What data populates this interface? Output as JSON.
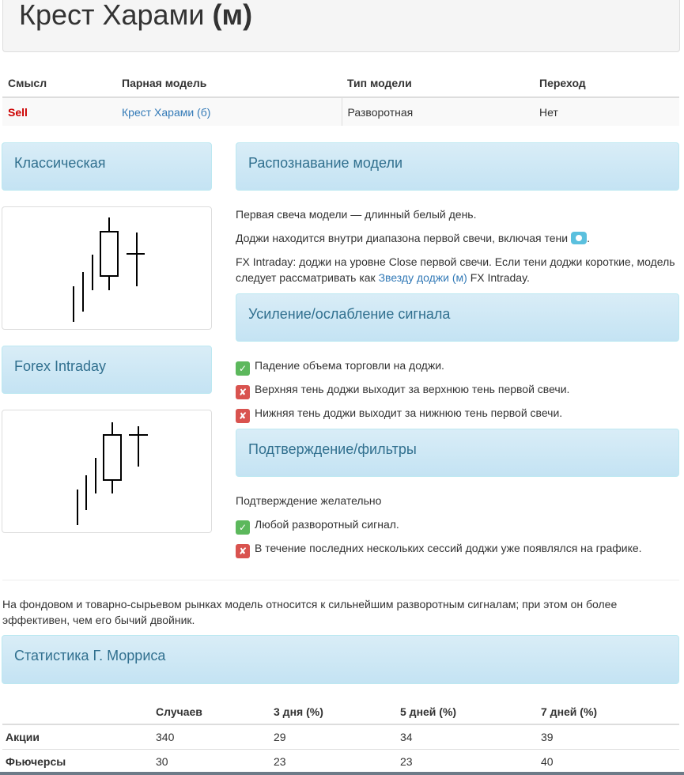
{
  "header": {
    "title": "Крест Харами",
    "suffix": "(м)"
  },
  "info_table": {
    "headers": [
      "Смысл",
      "Парная модель",
      "Тип модели",
      "Переход"
    ],
    "row": {
      "meaning": "Sell",
      "paired_model": "Крест Харами (б)",
      "model_type": "Разворотная",
      "transition": "Нет"
    }
  },
  "panels": {
    "classic": "Классическая",
    "forex": "Forex Intraday",
    "recognition": "Распознавание модели",
    "strength": "Усиление/ослабление сигнала",
    "confirmation": "Подтверждение/фильтры",
    "stats": "Статистика Г. Морриса"
  },
  "recognition": {
    "line1": "Первая свеча модели — длинный белый день.",
    "line2": "Доджи находится внутри диапазона первой свечи, включая тени",
    "line3_before": "FX Intraday: доджи на уровне Close первой свечи. Если тени доджи короткие, модель следует рассматривать как",
    "line3_link": "Звезду доджи (м)",
    "line3_after": "FX Intraday."
  },
  "strength": {
    "items": [
      {
        "status": "ok",
        "text": "Падение объема торговли на доджи."
      },
      {
        "status": "no",
        "text": "Верхняя тень доджи выходит за верхнюю тень первой свечи."
      },
      {
        "status": "no",
        "text": "Нижняя тень доджи выходит за нижнюю тень первой свечи."
      }
    ]
  },
  "confirmation": {
    "intro": "Подтверждение желательно",
    "items": [
      {
        "status": "ok",
        "text": "Любой разворотный сигнал."
      },
      {
        "status": "no",
        "text": "В течение последних нескольких сессий доджи уже появлялся на графике."
      }
    ]
  },
  "note": "На фондовом и товарно-сырьевом рынках модель относится к сильнейшим разворотным сигналам; при этом он более эффективен, чем его бычий двойник.",
  "stats_table": {
    "headers": [
      "",
      "Случаев",
      "3 дня (%)",
      "5 дней (%)",
      "7 дней (%)"
    ],
    "rows": [
      {
        "label": "Акции",
        "cases": "340",
        "d3": "29",
        "d5": "34",
        "d7": "39"
      },
      {
        "label": "Фьючерсы",
        "cases": "30",
        "d3": "23",
        "d5": "23",
        "d7": "40"
      }
    ]
  },
  "icons": {
    "ok": "check-icon",
    "no": "cross-icon",
    "info": "info-badge-icon"
  },
  "colors": {
    "sell": "#cc0000",
    "link": "#337ab7",
    "panel": "#d9edf7",
    "ok": "#5cb85c",
    "no": "#d9534f"
  }
}
